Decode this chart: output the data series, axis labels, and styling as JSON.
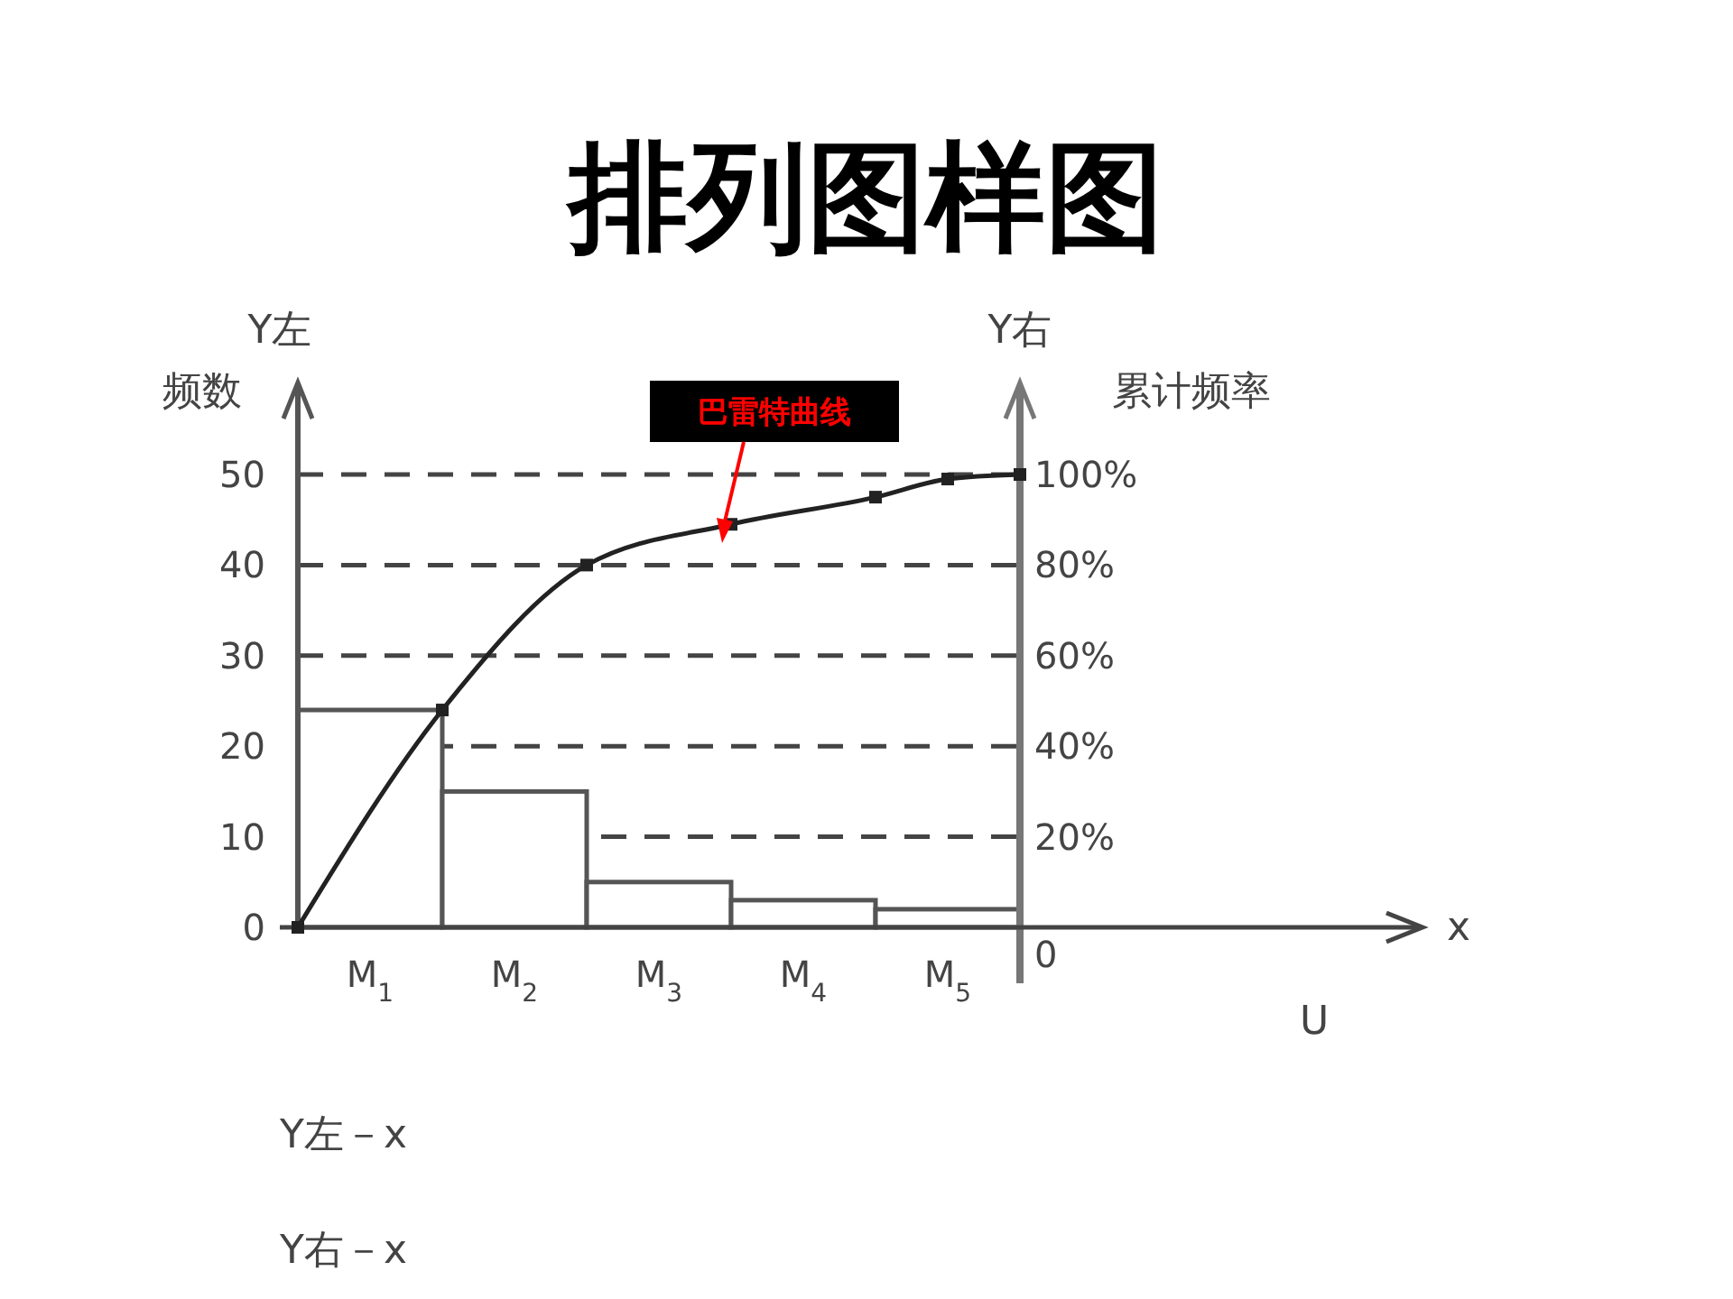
{
  "chart_data": {
    "type": "bar",
    "title": "排列图样图",
    "ylabel": "Y左频数",
    "y2label": "Y右累计频率",
    "x": [
      0.5,
      1.5,
      2.5,
      3.5,
      4.5
    ],
    "values": [
      24,
      15,
      5,
      3,
      2
    ],
    "color": "#555555",
    "series": [
      {
        "type": "line",
        "x": [
          0,
          1,
          2,
          3,
          4,
          4.5,
          5
        ],
        "values": [
          0,
          24,
          40,
          44.5,
          47.5,
          49.5,
          50
        ],
        "color": "#222222",
        "marker": "square"
      }
    ],
    "xlim": [
      0,
      7.75
    ],
    "xticks": [
      {
        "value": 0.5,
        "label": "M$_{1}$"
      },
      {
        "value": 1.5,
        "label": "M$_{2}$"
      },
      {
        "value": 2.5,
        "label": "M$_{3}$"
      },
      {
        "value": 3.5,
        "label": "M$_{4}$"
      },
      {
        "value": 4.5,
        "label": "M$_{5}$"
      }
    ],
    "ylim": [
      0,
      50
    ],
    "yticks": [
      0,
      10,
      20,
      30,
      40,
      50
    ],
    "y2lim": [
      0,
      100
    ],
    "y2ticks": [
      {
        "value": 0,
        "label": "0"
      },
      {
        "value": 20,
        "label": "20%"
      },
      {
        "value": 40,
        "label": "40%"
      },
      {
        "value": 60,
        "label": "60%"
      },
      {
        "value": 80,
        "label": "80%"
      },
      {
        "value": 100,
        "label": "100%"
      }
    ],
    "ref_lines": [
      {
        "axis": "y",
        "value": 10,
        "color": "#444444",
        "line_style": "dashed"
      },
      {
        "axis": "y",
        "value": 20,
        "color": "#444444",
        "line_style": "dashed"
      },
      {
        "axis": "y",
        "value": 30,
        "color": "#444444",
        "line_style": "dashed"
      },
      {
        "axis": "y",
        "value": 40,
        "color": "#444444",
        "line_style": "dashed"
      },
      {
        "axis": "y",
        "value": 50,
        "color": "#444444",
        "line_style": "dashed"
      }
    ],
    "annotations": [
      "巴雷特曲线",
      "x",
      "U",
      "Y左－x",
      "Y右－x"
    ]
  }
}
